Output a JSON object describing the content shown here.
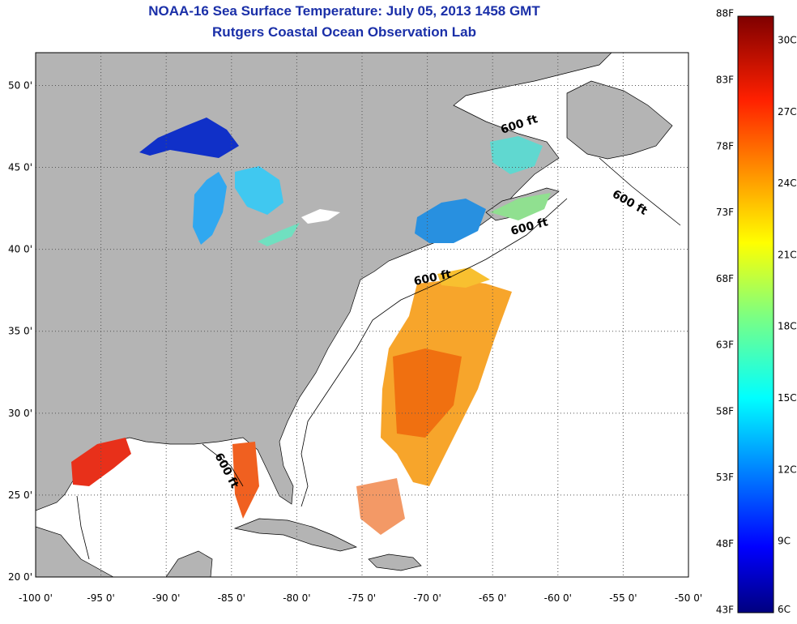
{
  "title": {
    "line1": "NOAA-16 Sea Surface Temperature:  July 05, 2013 1458 GMT",
    "line2": "Rutgers Coastal Ocean Observation Lab"
  },
  "map": {
    "lon_range": [
      -100,
      -50
    ],
    "lat_range": [
      20,
      52
    ],
    "lon_ticks": [
      "-100 0'",
      "-95 0'",
      "-90 0'",
      "-85 0'",
      "-80 0'",
      "-75 0'",
      "-70 0'",
      "-65 0'",
      "-60 0'",
      "-55 0'",
      "-50 0'"
    ],
    "lat_ticks": [
      "20 0'",
      "25 0'",
      "30 0'",
      "35 0'",
      "40 0'",
      "45 0'",
      "50 0'"
    ],
    "isobath_label": "600 ft",
    "land_color": "#b4b4b4",
    "ocean_color": "#ffffff"
  },
  "colorbar": {
    "fahrenheit": [
      "88F",
      "83F",
      "78F",
      "73F",
      "68F",
      "63F",
      "58F",
      "53F",
      "48F",
      "43F"
    ],
    "celsius": [
      "30C",
      "27C",
      "24C",
      "21C",
      "18C",
      "15C",
      "12C",
      "9C",
      "6C"
    ],
    "range_c": [
      6,
      31
    ]
  }
}
